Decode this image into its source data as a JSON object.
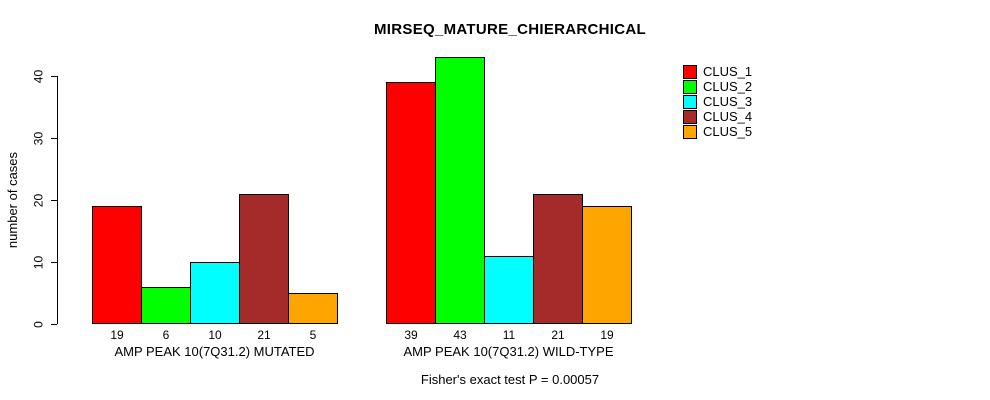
{
  "title": "MIRSEQ_MATURE_CHIERARCHICAL",
  "y_axis": {
    "label": "number of cases",
    "ticks": [
      "0",
      "10",
      "20",
      "30",
      "40"
    ]
  },
  "footer": "Fisher's exact test P = 0.00057",
  "legend": {
    "items": [
      {
        "label": "CLUS_1",
        "color": "#FF0000"
      },
      {
        "label": "CLUS_2",
        "color": "#00FF00"
      },
      {
        "label": "CLUS_3",
        "color": "#00FFFF"
      },
      {
        "label": "CLUS_4",
        "color": "#A52A2A"
      },
      {
        "label": "CLUS_5",
        "color": "#FFA500"
      }
    ]
  },
  "chart_data": {
    "type": "bar",
    "title": "MIRSEQ_MATURE_CHIERARCHICAL",
    "xlabel": "",
    "ylabel": "number of cases",
    "ylim": [
      0,
      43
    ],
    "yticks": [
      0,
      10,
      20,
      30,
      40
    ],
    "grid": false,
    "legend_position": "top-right",
    "bar_value_labels": true,
    "categories": [
      "AMP PEAK 10(7Q31.2) MUTATED",
      "AMP PEAK 10(7Q31.2) WILD-TYPE"
    ],
    "series": [
      {
        "name": "CLUS_1",
        "color": "#FF0000",
        "values": [
          19,
          39
        ]
      },
      {
        "name": "CLUS_2",
        "color": "#00FF00",
        "values": [
          6,
          43
        ]
      },
      {
        "name": "CLUS_3",
        "color": "#00FFFF",
        "values": [
          10,
          11
        ]
      },
      {
        "name": "CLUS_4",
        "color": "#A52A2A",
        "values": [
          21,
          21
        ]
      },
      {
        "name": "CLUS_5",
        "color": "#FFA500",
        "values": [
          5,
          19
        ]
      }
    ],
    "annotation": "Fisher's exact test P = 0.00057"
  }
}
